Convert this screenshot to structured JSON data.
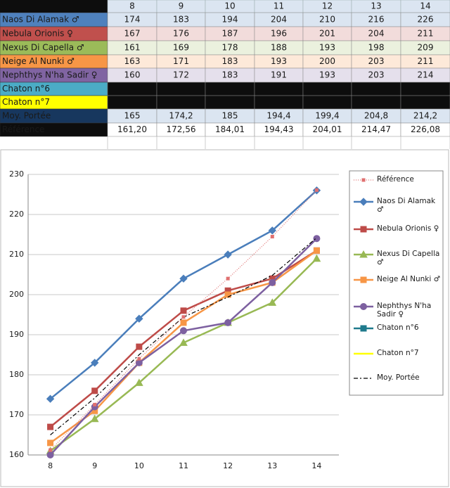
{
  "chart_data": {
    "type": "line",
    "categories": [
      "8",
      "9",
      "10",
      "11",
      "12",
      "13",
      "14"
    ],
    "ylim": [
      160,
      230
    ],
    "yticks": [
      160,
      170,
      180,
      190,
      200,
      210,
      220,
      230
    ],
    "series": [
      {
        "name": "Naos Di Alamak ♂",
        "color": "#4a7ebb",
        "marker": "diamond",
        "values": [
          174,
          183,
          194,
          204,
          210,
          216,
          226
        ]
      },
      {
        "name": "Nebula Orionis ♀",
        "color": "#be4b48",
        "marker": "square",
        "values": [
          167,
          176,
          187,
          196,
          201,
          204,
          211
        ]
      },
      {
        "name": "Nexus Di Capella ♂",
        "color": "#98b954",
        "marker": "triangle",
        "values": [
          161,
          169,
          178,
          188,
          193,
          198,
          209
        ]
      },
      {
        "name": "Neige Al Nunki ♂",
        "color": "#f79646",
        "marker": "square",
        "values": [
          163,
          171,
          183,
          193,
          200,
          203,
          211
        ]
      },
      {
        "name": "Nephthys N'ha Sadir ♀",
        "color": "#7d60a0",
        "marker": "circle",
        "values": [
          160,
          172,
          183,
          191,
          193,
          203,
          214
        ]
      },
      {
        "name": "Chaton n°6",
        "color": "#1f7a8c",
        "marker": "square",
        "values": [
          null,
          null,
          null,
          null,
          null,
          null,
          null
        ]
      },
      {
        "name": "Chaton n°7",
        "color": "#ffff00",
        "marker": "none",
        "values": [
          null,
          null,
          null,
          null,
          null,
          null,
          null
        ]
      },
      {
        "name": "Moy. Portée",
        "color": "#000000",
        "marker": "none",
        "dash": "6 3 2 3",
        "values": [
          165,
          174.2,
          185,
          194.4,
          199.4,
          204.8,
          214.2
        ],
        "value_labels": [
          "165",
          "174,2",
          "185",
          "194,4",
          "199,4",
          "204,8",
          "214,2"
        ]
      },
      {
        "name": "Référence",
        "color": "#e07070",
        "marker": "small-square",
        "dash": "1 2",
        "values": [
          161.2,
          172.56,
          184.01,
          194.43,
          204.01,
          214.47,
          226.08
        ],
        "value_labels": [
          "161,20",
          "172,56",
          "184,01",
          "194,43",
          "204,01",
          "214,47",
          "226,08"
        ]
      }
    ]
  }
}
